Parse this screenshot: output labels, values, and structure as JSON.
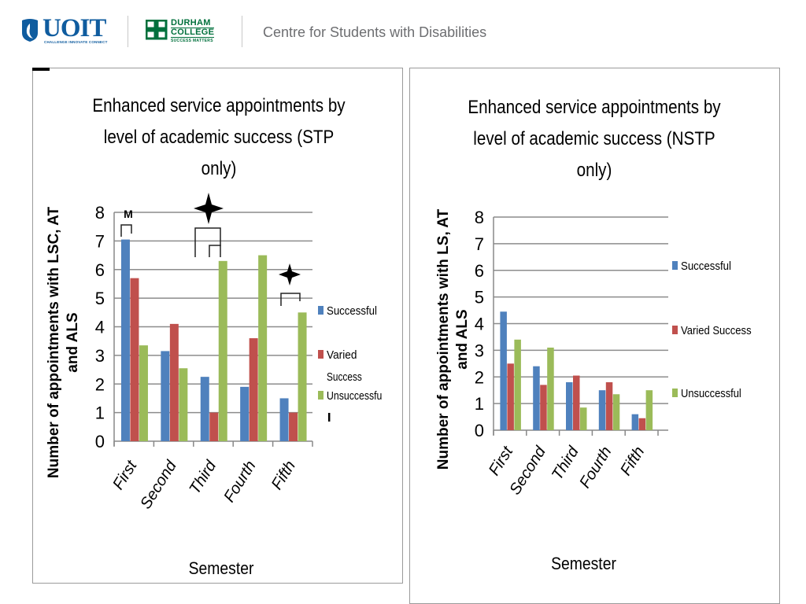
{
  "header": {
    "uoit_logo_text": "UOIT",
    "uoit_tagline": "CHALLENGE INNOVATE CONNECT",
    "durham_line1": "DURHAM",
    "durham_line2": "COLLEGE",
    "durham_tagline": "SUCCESS MATTERS",
    "title": "Centre for Students with Disabilities"
  },
  "colors": {
    "successful": "#4f81bd",
    "varied": "#c0504d",
    "unsuccessful": "#9bbb59",
    "uoit_blue": "#0f5c9f",
    "durham_green": "#00703c",
    "header_text": "#6d6e71"
  },
  "chart_data": [
    {
      "type": "bar",
      "title": "Enhanced service appointments by level of academic success (STP only)",
      "title_lines": [
        "Enhanced service appointments by",
        "level of academic success (STP",
        "only)"
      ],
      "xlabel": "Semester",
      "ylabel": "Number of appointments with LSC, AT and ALS",
      "ylabel_lines": [
        "Number of appointments with LSC, AT",
        "and ALS"
      ],
      "categories": [
        "First",
        "Second",
        "Third",
        "Fourth",
        "Fifth"
      ],
      "ylim": [
        0,
        8
      ],
      "yticks": [
        "0",
        "1",
        "2",
        "3",
        "4",
        "5",
        "6",
        "7",
        "8"
      ],
      "grid": true,
      "legend_position": "right",
      "series": [
        {
          "name": "Successful",
          "legend_lines": [
            "Successful"
          ],
          "color_key": "successful",
          "values": [
            7.05,
            3.15,
            2.25,
            1.9,
            1.5
          ]
        },
        {
          "name": "Varied Success",
          "legend_lines": [
            "Varied",
            "Success"
          ],
          "color_key": "varied",
          "values": [
            5.7,
            4.1,
            1.0,
            3.6,
            1.0
          ]
        },
        {
          "name": "Unsuccessful",
          "legend_lines": [
            "Unsuccessfu",
            "l"
          ],
          "color_key": "unsuccessful",
          "values": [
            3.35,
            2.55,
            6.3,
            6.5,
            4.5
          ]
        }
      ],
      "annotations": [
        "M"
      ]
    },
    {
      "type": "bar",
      "title": "Enhanced service appointments by level of academic success (NSTP only)",
      "title_lines": [
        "Enhanced service appointments by",
        "level of academic success (NSTP",
        "only)"
      ],
      "xlabel": "Semester",
      "ylabel": "Number of appointments with LS, AT and ALS",
      "ylabel_lines": [
        "Number of appointments with LS, AT",
        "and ALS"
      ],
      "categories": [
        "First",
        "Second",
        "Third",
        "Fourth",
        "Fifth"
      ],
      "ylim": [
        0,
        8
      ],
      "yticks": [
        "0",
        "1",
        "2",
        "3",
        "4",
        "5",
        "6",
        "7",
        "8"
      ],
      "grid": true,
      "legend_position": "right",
      "series": [
        {
          "name": "Successful",
          "legend_lines": [
            "Successful"
          ],
          "color_key": "successful",
          "values": [
            4.45,
            2.4,
            1.8,
            1.5,
            0.6
          ]
        },
        {
          "name": "Varied Success",
          "legend_lines": [
            "Varied Success"
          ],
          "color_key": "varied",
          "values": [
            2.5,
            1.7,
            2.05,
            1.8,
            0.45
          ]
        },
        {
          "name": "Unsuccessful",
          "legend_lines": [
            "Unsuccessful"
          ],
          "color_key": "unsuccessful",
          "values": [
            3.4,
            3.1,
            0.85,
            1.35,
            1.5
          ]
        }
      ]
    }
  ]
}
